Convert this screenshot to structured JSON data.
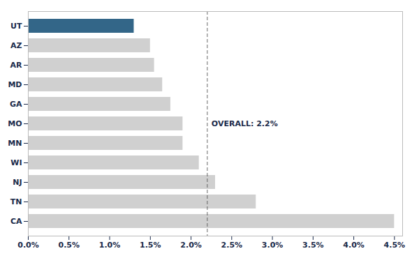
{
  "chart_data": {
    "type": "bar",
    "orientation": "horizontal",
    "categories": [
      "CA",
      "TN",
      "NJ",
      "WI",
      "MN",
      "MO",
      "GA",
      "MD",
      "AR",
      "AZ",
      "UT"
    ],
    "values": [
      4.5,
      2.8,
      2.3,
      2.1,
      1.9,
      1.9,
      1.75,
      1.65,
      1.55,
      1.5,
      1.3
    ],
    "colors": [
      "#d0d0d0",
      "#d0d0d0",
      "#d0d0d0",
      "#d0d0d0",
      "#d0d0d0",
      "#d0d0d0",
      "#d0d0d0",
      "#d0d0d0",
      "#d0d0d0",
      "#d0d0d0",
      "#336688"
    ],
    "xlim": [
      0,
      4.6
    ],
    "xticks": [
      {
        "value": 0.0,
        "label": "0.0%"
      },
      {
        "value": 0.5,
        "label": "0.5%"
      },
      {
        "value": 1.0,
        "label": "1.0%"
      },
      {
        "value": 1.5,
        "label": "1.5%"
      },
      {
        "value": 2.0,
        "label": "2.0%"
      },
      {
        "value": 2.5,
        "label": "2.5%"
      },
      {
        "value": 3.0,
        "label": "3.0%"
      },
      {
        "value": 3.5,
        "label": "3.5%"
      },
      {
        "value": 4.0,
        "label": "4.0%"
      },
      {
        "value": 4.5,
        "label": "4.5%"
      }
    ],
    "reference_lines": [
      {
        "x": 2.2,
        "color": "#555555",
        "line_style": "dashed"
      }
    ],
    "annotations": [
      {
        "text": "OVERALL: 2.2%",
        "x": 2.2,
        "y": "MO"
      }
    ],
    "grid": false
  }
}
